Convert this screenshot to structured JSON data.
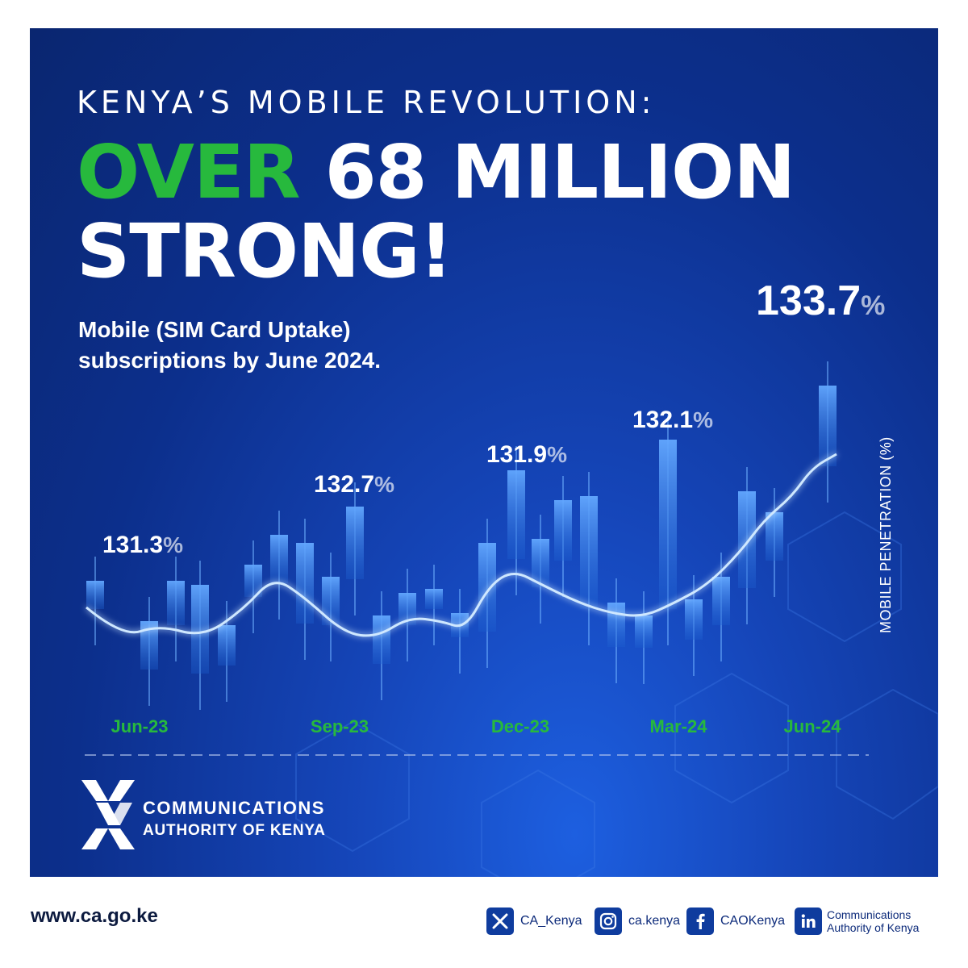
{
  "poster": {
    "kicker": "KENYA’S MOBILE REVOLUTION:",
    "headline_accent": "OVER",
    "headline_rest": " 68 MILLION STRONG!",
    "subtitle": "Mobile (SIM Card Uptake) subscriptions by June 2024."
  },
  "chart_data": {
    "type": "line",
    "ylabel": "MOBILE PENETRATION (%)",
    "categories": [
      "Jun-23",
      "Sep-23",
      "Dec-23",
      "Mar-24",
      "Jun-24"
    ],
    "series": [
      {
        "values": [
          131.3,
          132.7,
          131.9,
          132.1,
          133.7
        ]
      }
    ],
    "value_suffix": "%",
    "data_labels": [
      "131.3",
      "132.7",
      "131.9",
      "132.1",
      "133.7"
    ],
    "colors": {
      "tick": "#27b93d",
      "line": "#cfe8ff",
      "bar": "#3e8ef0"
    }
  },
  "org": {
    "name_line1": "COMMUNICATIONS",
    "name_line2": "AUTHORITY OF KENYA"
  },
  "footer": {
    "url": "www.ca.go.ke",
    "x_handle": "CA_Kenya",
    "instagram_handle": "ca.kenya",
    "facebook_handle": "CAOKenya",
    "linkedin_line1": "Communications",
    "linkedin_line2": "Authority of Kenya"
  },
  "icons": [
    "x-icon",
    "instagram-icon",
    "facebook-icon",
    "linkedin-icon",
    "ca-logo-icon"
  ],
  "colors": {
    "panel": "#0c2f8c",
    "accent_green": "#27b93d",
    "footer_text": "#0c1a3f",
    "social_bg": "#0f3c9e"
  }
}
